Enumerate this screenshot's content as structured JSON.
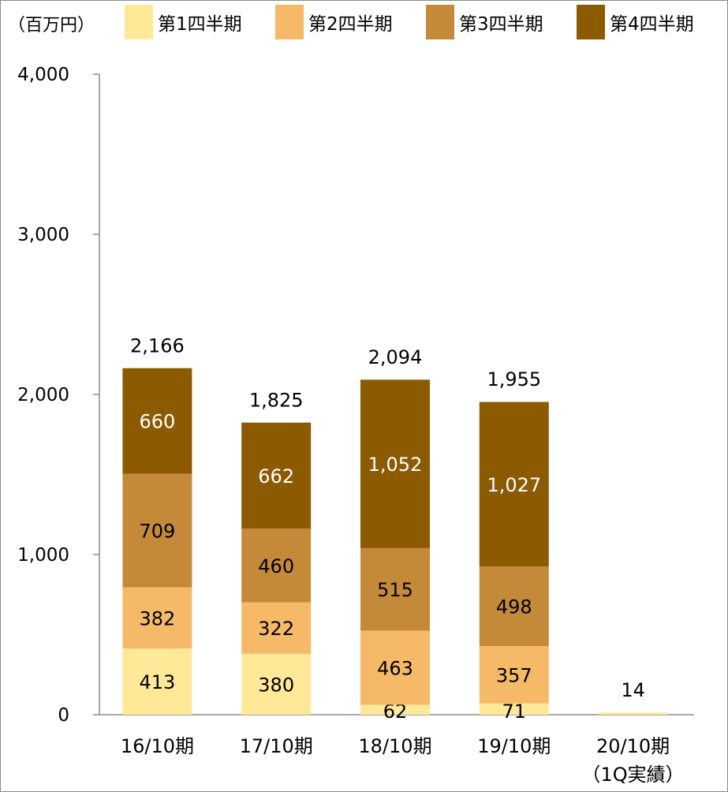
{
  "unit_label": "（百万円）",
  "legend": [
    {
      "label": "第1四半期",
      "color": "#FFE999"
    },
    {
      "label": "第2四半期",
      "color": "#F6B967"
    },
    {
      "label": "第3四半期",
      "color": "#C48A3A"
    },
    {
      "label": "第4四半期",
      "color": "#8C5A00"
    }
  ],
  "chart_data": {
    "type": "bar",
    "stacked": true,
    "categories": [
      "16/10期",
      "17/10期",
      "18/10期",
      "19/10期",
      "20/10期"
    ],
    "category_notes": [
      "",
      "",
      "",
      "",
      "（1Q実績）"
    ],
    "series": [
      {
        "name": "第1四半期",
        "values": [
          413,
          380,
          62,
          71,
          14
        ]
      },
      {
        "name": "第2四半期",
        "values": [
          382,
          322,
          463,
          357,
          null
        ]
      },
      {
        "name": "第3四半期",
        "values": [
          709,
          460,
          515,
          498,
          null
        ]
      },
      {
        "name": "第4四半期",
        "values": [
          660,
          662,
          1052,
          1027,
          null
        ]
      }
    ],
    "totals": [
      2166,
      1825,
      2094,
      1955,
      14
    ],
    "totals_text": [
      "2,166",
      "1,825",
      "2,094",
      "1,955",
      "14"
    ],
    "segment_text": [
      [
        "413",
        "380",
        "62",
        "71",
        ""
      ],
      [
        "382",
        "322",
        "463",
        "357",
        ""
      ],
      [
        "709",
        "460",
        "515",
        "498",
        ""
      ],
      [
        "660",
        "662",
        "1,052",
        "1,027",
        ""
      ]
    ],
    "ylim": [
      0,
      4000
    ],
    "yticks": [
      0,
      1000,
      2000,
      3000,
      4000
    ],
    "ytick_labels": [
      "0",
      "1,000",
      "2,000",
      "3,000",
      "4,000"
    ],
    "legend_position": "top",
    "grid": false
  }
}
